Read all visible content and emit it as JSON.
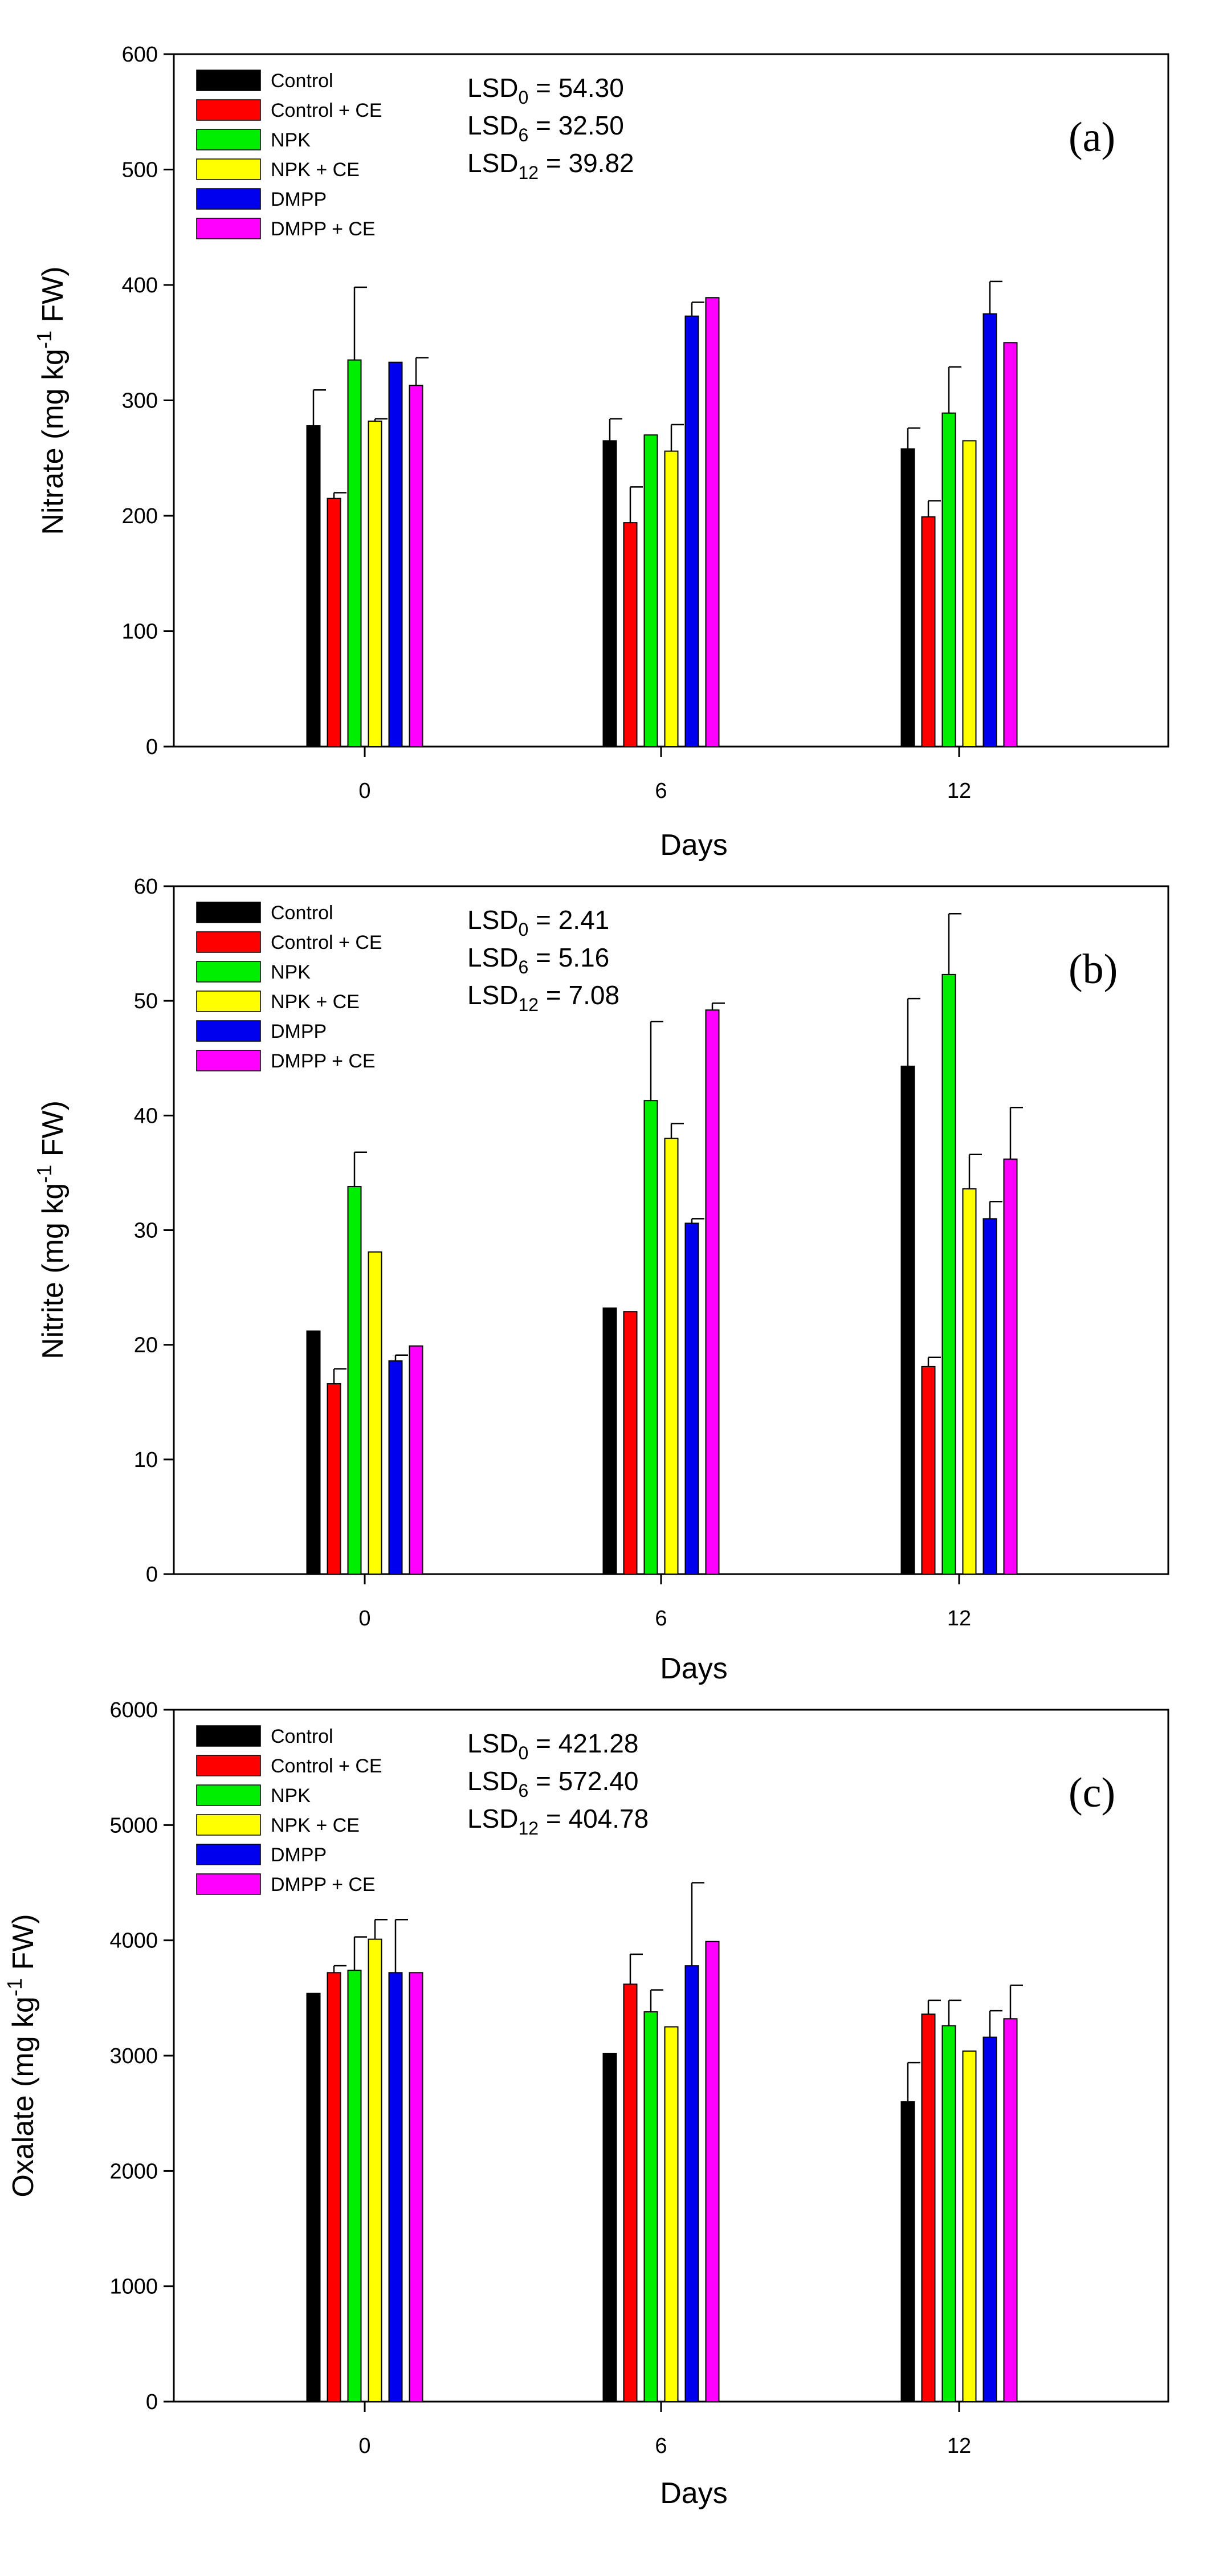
{
  "colors": {
    "Control": "#000000",
    "Control + CE": "#ff0000",
    "NPK": "#00ee00",
    "NPK + CE": "#ffff00",
    "DMPP": "#0000ee",
    "DMPP + CE": "#ff00ff"
  },
  "chart_data": [
    {
      "type": "bar",
      "panel_label": "(a)",
      "xlabel": "Days",
      "ylabel": "Nitrate (mg kg-1 FW)",
      "ylabel_parts": {
        "main": "Nitrate (mg kg",
        "sup": "-1",
        "tail": " FW)"
      },
      "ylim": [
        0,
        600
      ],
      "yticks": [
        0,
        100,
        200,
        300,
        400,
        500,
        600
      ],
      "categories": [
        "0",
        "6",
        "12"
      ],
      "legend_position": "top-left",
      "lsd": [
        {
          "base": "LSD",
          "sub": "0",
          "value": " = 54.30"
        },
        {
          "base": "LSD",
          "sub": "6",
          "value": " = 32.50"
        },
        {
          "base": "LSD",
          "sub": "12",
          "value": " = 39.82"
        }
      ],
      "series": [
        {
          "name": "Control",
          "values": [
            278,
            265,
            258
          ],
          "errors": [
            31,
            19,
            18
          ]
        },
        {
          "name": "Control + CE",
          "values": [
            215,
            194,
            199
          ],
          "errors": [
            5,
            31,
            14
          ]
        },
        {
          "name": "NPK",
          "values": [
            335,
            270,
            289
          ],
          "errors": [
            63,
            0,
            40
          ]
        },
        {
          "name": "NPK + CE",
          "values": [
            282,
            256,
            265
          ],
          "errors": [
            2,
            23,
            0
          ]
        },
        {
          "name": "DMPP",
          "values": [
            333,
            373,
            375
          ],
          "errors": [
            0,
            12,
            28
          ]
        },
        {
          "name": "DMPP + CE",
          "values": [
            313,
            389,
            350
          ],
          "errors": [
            24,
            0,
            0
          ]
        }
      ]
    },
    {
      "type": "bar",
      "panel_label": "(b)",
      "xlabel": "Days",
      "ylabel": "Nitrite (mg kg-1 FW)",
      "ylabel_parts": {
        "main": "Nitrite (mg kg",
        "sup": "-1",
        "tail": " FW)"
      },
      "ylim": [
        0,
        60
      ],
      "yticks": [
        0,
        10,
        20,
        30,
        40,
        50,
        60
      ],
      "categories": [
        "0",
        "6",
        "12"
      ],
      "legend_position": "top-left",
      "lsd": [
        {
          "base": "LSD",
          "sub": "0",
          "value": " = 2.41"
        },
        {
          "base": "LSD",
          "sub": "6",
          "value": " = 5.16"
        },
        {
          "base": "LSD",
          "sub": "12",
          "value": " = 7.08"
        }
      ],
      "series": [
        {
          "name": "Control",
          "values": [
            21.2,
            23.2,
            44.3
          ],
          "errors": [
            0,
            0,
            5.9
          ]
        },
        {
          "name": "Control + CE",
          "values": [
            16.6,
            22.9,
            18.1
          ],
          "errors": [
            1.3,
            0,
            0.8
          ]
        },
        {
          "name": "NPK",
          "values": [
            33.8,
            41.3,
            52.3
          ],
          "errors": [
            3.0,
            6.9,
            5.3
          ]
        },
        {
          "name": "NPK + CE",
          "values": [
            28.1,
            38.0,
            33.6
          ],
          "errors": [
            0,
            1.3,
            3.0
          ]
        },
        {
          "name": "DMPP",
          "values": [
            18.6,
            30.6,
            31.0
          ],
          "errors": [
            0.5,
            0.4,
            1.5
          ]
        },
        {
          "name": "DMPP + CE",
          "values": [
            19.9,
            49.2,
            36.2
          ],
          "errors": [
            0,
            0.6,
            4.5
          ]
        }
      ]
    },
    {
      "type": "bar",
      "panel_label": "(c)",
      "xlabel": "Days",
      "ylabel": "Oxalate (mg kg-1 FW)",
      "ylabel_parts": {
        "main": "Oxalate (mg kg",
        "sup": "-1",
        "tail": " FW)"
      },
      "ylim": [
        0,
        6000
      ],
      "yticks": [
        0,
        1000,
        2000,
        3000,
        4000,
        5000,
        6000
      ],
      "categories": [
        "0",
        "6",
        "12"
      ],
      "legend_position": "top-left",
      "lsd": [
        {
          "base": "LSD",
          "sub": "0",
          "value": " = 421.28"
        },
        {
          "base": "LSD",
          "sub": "6",
          "value": " = 572.40"
        },
        {
          "base": "LSD",
          "sub": "12",
          "value": " = 404.78"
        }
      ],
      "series": [
        {
          "name": "Control",
          "values": [
            3540,
            3020,
            2600
          ],
          "errors": [
            0,
            0,
            340
          ]
        },
        {
          "name": "Control + CE",
          "values": [
            3720,
            3620,
            3360
          ],
          "errors": [
            60,
            260,
            120
          ]
        },
        {
          "name": "NPK",
          "values": [
            3740,
            3380,
            3260
          ],
          "errors": [
            290,
            190,
            220
          ]
        },
        {
          "name": "NPK + CE",
          "values": [
            4010,
            3250,
            3040
          ],
          "errors": [
            170,
            0,
            0
          ]
        },
        {
          "name": "DMPP",
          "values": [
            3720,
            3780,
            3160
          ],
          "errors": [
            460,
            720,
            230
          ]
        },
        {
          "name": "DMPP + CE",
          "values": [
            3720,
            3990,
            3320
          ],
          "errors": [
            0,
            0,
            290
          ]
        }
      ]
    }
  ]
}
